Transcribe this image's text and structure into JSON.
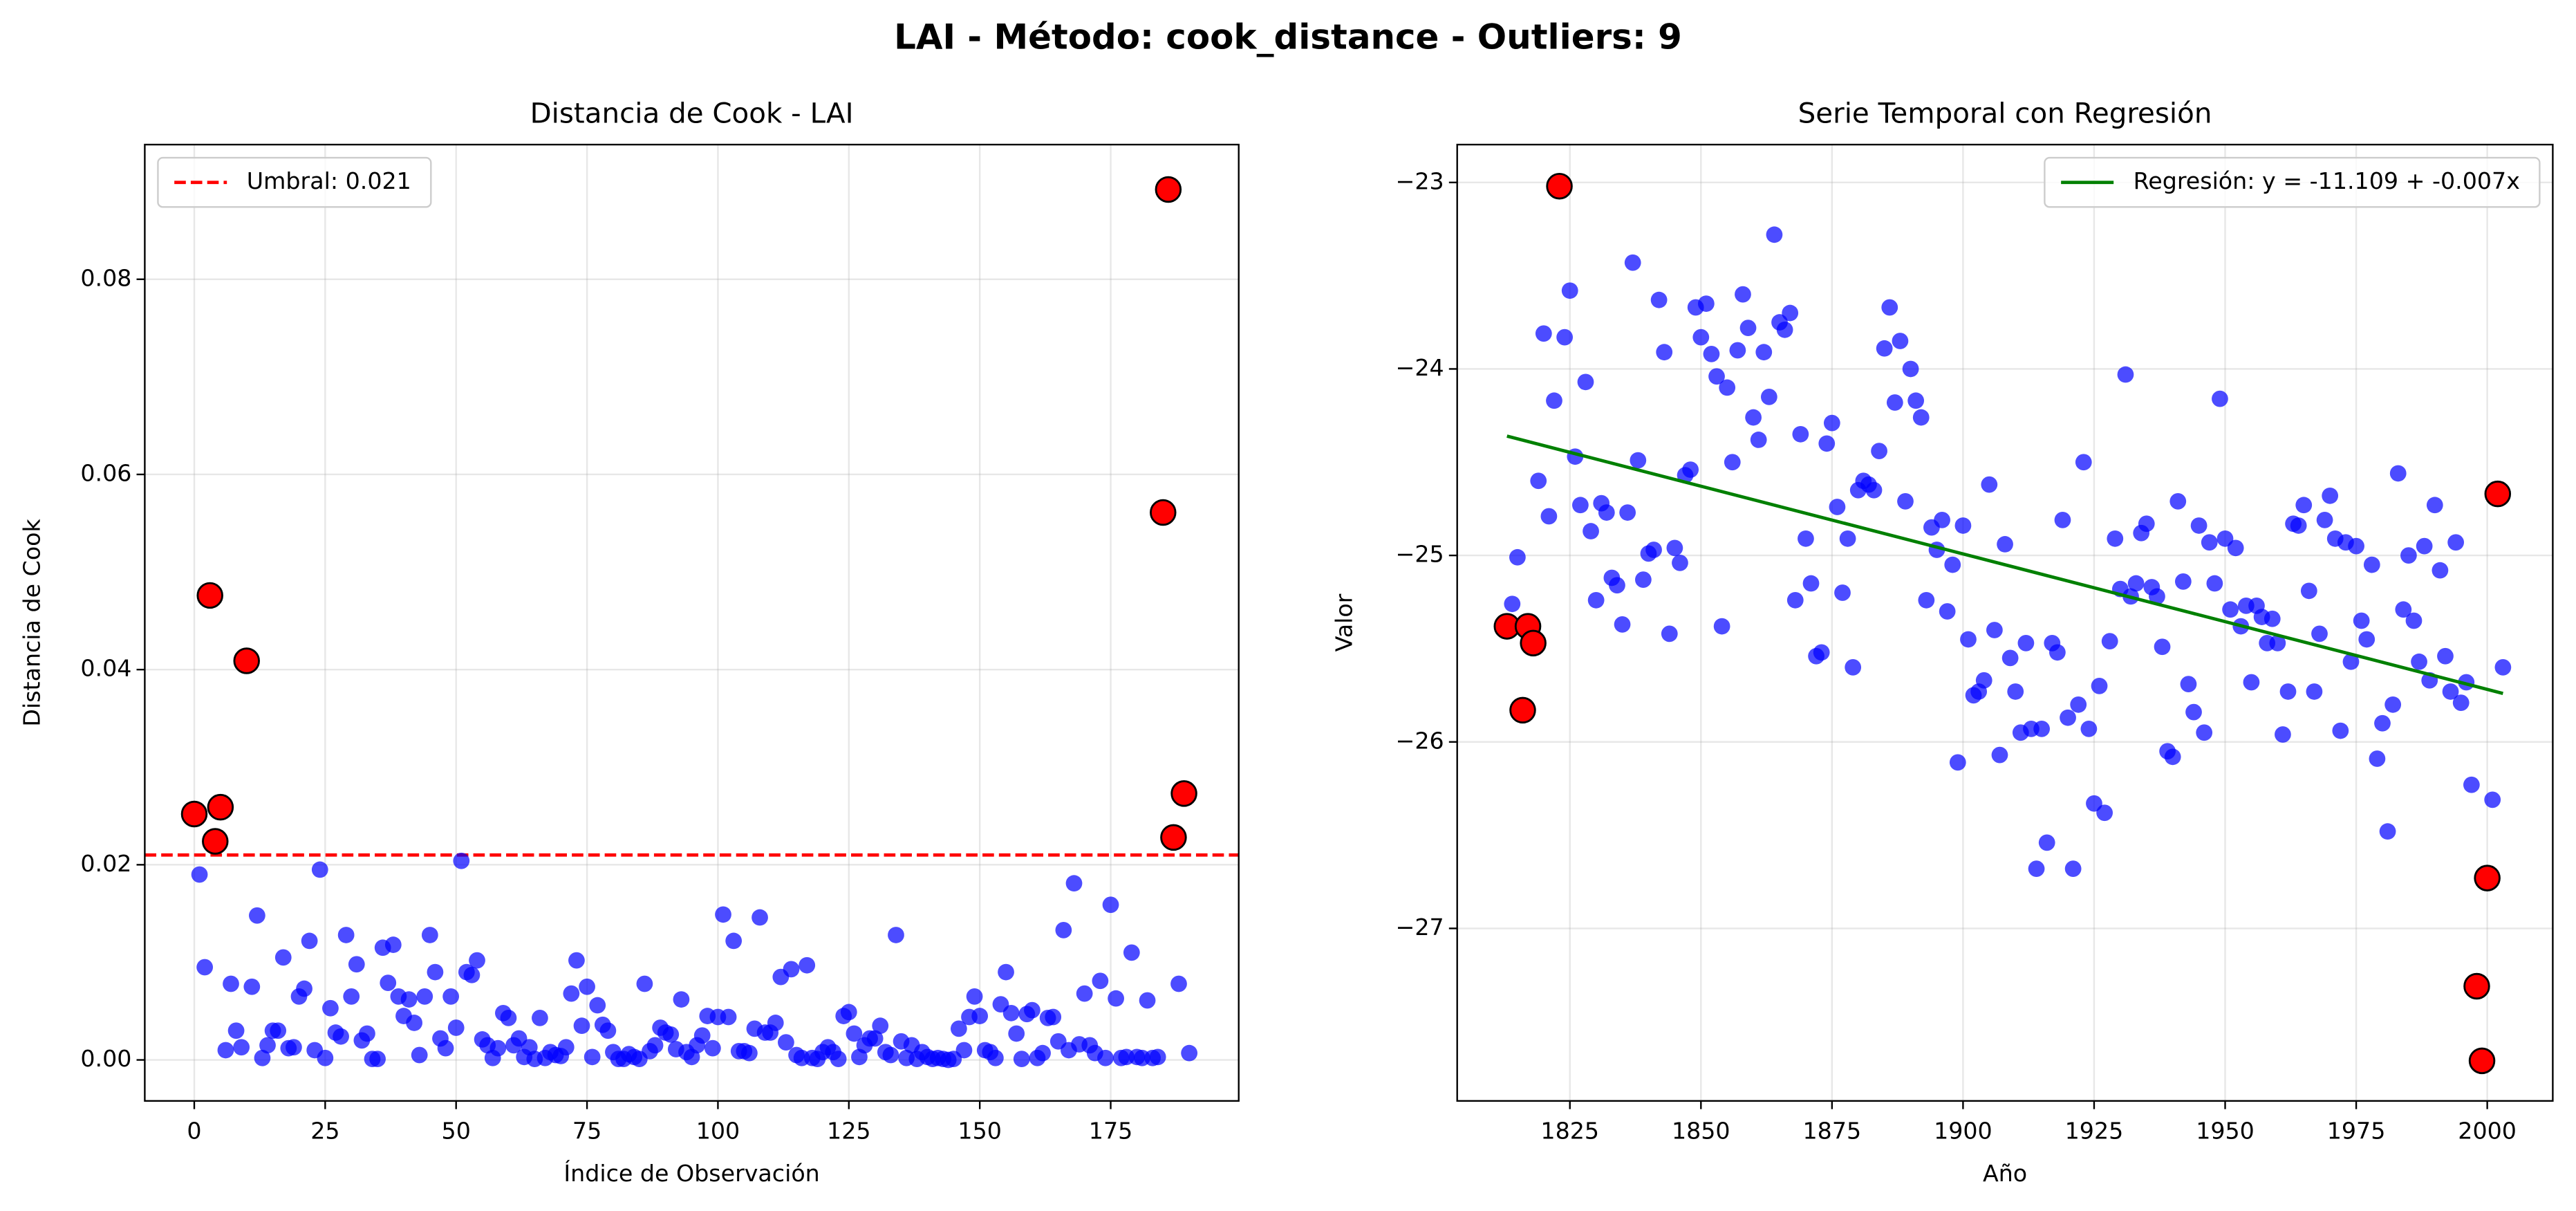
{
  "title": "LAI  - Método: cook_distance - Outliers: 9",
  "chart_data": [
    {
      "type": "scatter",
      "title": "Distancia de Cook - LAI",
      "xlabel": "Índice de Observación",
      "ylabel": "Distancia de Cook",
      "xlim": [
        -9.45,
        199.45
      ],
      "ylim": [
        -0.0042,
        0.0938
      ],
      "xticks": [
        0,
        25,
        50,
        75,
        100,
        125,
        150,
        175
      ],
      "yticks": [
        {
          "value": 0,
          "label": "0.00"
        },
        {
          "value": 0.02,
          "label": "0.02"
        },
        {
          "value": 0.04,
          "label": "0.04"
        },
        {
          "value": 0.06,
          "label": "0.06"
        },
        {
          "value": 0.08,
          "label": "0.08"
        }
      ],
      "grid": true,
      "legend": "upper left",
      "threshold": {
        "value": 0.021,
        "label": "Umbral: 0.021",
        "color": "#ff0000"
      },
      "series": [
        {
          "color": "#0000ff",
          "x": [
            1,
            2,
            6,
            7,
            8,
            9,
            11,
            12,
            13,
            14,
            15,
            16,
            17,
            18,
            19,
            20,
            21,
            22,
            23,
            24,
            25,
            26,
            27,
            28,
            29,
            30,
            31,
            32,
            33,
            34,
            35,
            36,
            37,
            38,
            39,
            40,
            41,
            42,
            43,
            44,
            45,
            46,
            47,
            48,
            49,
            50,
            51,
            52,
            53,
            54,
            55,
            56,
            57,
            58,
            59,
            60,
            61,
            62,
            63,
            64,
            65,
            66,
            67,
            68,
            69,
            70,
            71,
            72,
            73,
            74,
            75,
            76,
            77,
            78,
            79,
            80,
            81,
            82,
            83,
            84,
            85,
            86,
            87,
            88,
            89,
            90,
            91,
            92,
            93,
            94,
            95,
            96,
            97,
            98,
            99,
            100,
            101,
            102,
            103,
            104,
            105,
            106,
            107,
            108,
            109,
            110,
            111,
            112,
            113,
            114,
            115,
            116,
            117,
            118,
            119,
            120,
            121,
            122,
            123,
            124,
            125,
            126,
            127,
            128,
            129,
            130,
            131,
            132,
            133,
            134,
            135,
            136,
            137,
            138,
            139,
            140,
            141,
            142,
            143,
            144,
            145,
            146,
            147,
            148,
            149,
            150,
            151,
            152,
            153,
            154,
            155,
            156,
            157,
            158,
            159,
            160,
            161,
            162,
            163,
            164,
            165,
            166,
            167,
            168,
            169,
            170,
            171,
            172,
            173,
            174,
            175,
            176,
            177,
            178,
            179,
            180,
            181,
            182,
            183,
            184,
            188,
            190
          ],
          "values": [
            0.019,
            0.0095,
            0.001,
            0.0078,
            0.003,
            0.0013,
            0.0075,
            0.0148,
            0.0002,
            0.0015,
            0.003,
            0.003,
            0.0105,
            0.0012,
            0.0013,
            0.0065,
            0.0073,
            0.0122,
            0.001,
            0.0195,
            0.0002,
            0.0053,
            0.0028,
            0.0024,
            0.0128,
            0.0065,
            0.0098,
            0.002,
            0.0027,
            0.0001,
            0.0001,
            0.0115,
            0.0079,
            0.0118,
            0.0065,
            0.0045,
            0.0062,
            0.0038,
            0.0005,
            0.0065,
            0.0128,
            0.009,
            0.0022,
            0.0012,
            0.0065,
            0.0033,
            0.0204,
            0.009,
            0.0087,
            0.0102,
            0.0021,
            0.0015,
            0.0002,
            0.0012,
            0.0048,
            0.0043,
            0.0015,
            0.0022,
            0.0003,
            0.0013,
            0.0001,
            0.0043,
            0.0002,
            0.0008,
            0.0005,
            0.0004,
            0.0013,
            0.0068,
            0.0102,
            0.0035,
            0.0075,
            0.0003,
            0.0056,
            0.0036,
            0.003,
            0.0008,
            0.0001,
            0.0001,
            0.0006,
            0.0003,
            0.0001,
            0.0078,
            0.0009,
            0.0015,
            0.0033,
            0.0028,
            0.0026,
            0.0011,
            0.0062,
            0.0008,
            0.0003,
            0.0015,
            0.0025,
            0.0045,
            0.0012,
            0.0044,
            0.0149,
            0.0044,
            0.0122,
            0.0009,
            0.0009,
            0.0007,
            0.0032,
            0.0146,
            0.0028,
            0.0028,
            0.0038,
            0.0085,
            0.0018,
            0.0093,
            0.0005,
            0.0002,
            0.0097,
            0.0002,
            0.0001,
            0.0008,
            0.0013,
            0.0008,
            0.0001,
            0.0045,
            0.0049,
            0.0027,
            0.0003,
            0.0015,
            0.0022,
            0.0022,
            0.0035,
            0.0008,
            0.0005,
            0.0128,
            0.0019,
            0.0002,
            0.0015,
            0.0001,
            0.0008,
            0.0003,
            0.0001,
            0.0002,
            0.0001,
            0,
            0.0001,
            0.0032,
            0.001,
            0.0044,
            0.0065,
            0.0045,
            0.001,
            0.0008,
            0.0002,
            0.0057,
            0.009,
            0.0048,
            0.0027,
            0.0001,
            0.0047,
            0.0051,
            0.0002,
            0.0007,
            0.0043,
            0.0044,
            0.0019,
            0.0133,
            0.001,
            0.0181,
            0.0016,
            0.0068,
            0.0015,
            0.0007,
            0.0081,
            0.0002,
            0.0159,
            0.0063,
            0.0002,
            0.0003,
            0.011,
            0.0003,
            0.0002,
            0.0061,
            0.0002,
            0.0003,
            0.0078,
            0.0007
          ]
        },
        {
          "color": "#ff0000",
          "x": [
            0,
            3,
            4,
            5,
            10,
            185,
            186,
            187,
            189
          ],
          "values": [
            0.0252,
            0.0476,
            0.0224,
            0.0259,
            0.0409,
            0.0561,
            0.0892,
            0.0228,
            0.0273
          ]
        }
      ]
    },
    {
      "type": "scatter",
      "title": "Serie Temporal con Regresión",
      "xlabel": "Año",
      "ylabel": "Valor",
      "xlim": [
        1803.5,
        2012.5
      ],
      "ylim": [
        -27.925,
        -22.797
      ],
      "xticks": [
        1825,
        1850,
        1875,
        1900,
        1925,
        1950,
        1975,
        2000
      ],
      "yticks": [
        {
          "value": -23,
          "label": "−23"
        },
        {
          "value": -24,
          "label": "−24"
        },
        {
          "value": -25,
          "label": "−25"
        },
        {
          "value": -26,
          "label": "−26"
        },
        {
          "value": -27,
          "label": "−27"
        }
      ],
      "grid": true,
      "legend": "upper right",
      "regression": {
        "label": "Regresión: y = -11.109 + -0.007x",
        "color": "#008000",
        "x": [
          1813,
          2003
        ],
        "values": [
          -24.36,
          -25.74
        ]
      },
      "series": [
        {
          "color": "#0000ff",
          "x": [
            1814,
            1815,
            1819,
            1820,
            1821,
            1822,
            1824,
            1825,
            1826,
            1827,
            1828,
            1829,
            1830,
            1831,
            1832,
            1833,
            1834,
            1835,
            1836,
            1837,
            1838,
            1839,
            1840,
            1841,
            1842,
            1843,
            1844,
            1845,
            1846,
            1847,
            1848,
            1849,
            1850,
            1851,
            1852,
            1853,
            1854,
            1855,
            1856,
            1857,
            1858,
            1859,
            1860,
            1861,
            1862,
            1863,
            1864,
            1865,
            1866,
            1867,
            1868,
            1869,
            1870,
            1871,
            1872,
            1873,
            1874,
            1875,
            1876,
            1877,
            1878,
            1879,
            1880,
            1881,
            1882,
            1883,
            1884,
            1885,
            1886,
            1887,
            1888,
            1889,
            1890,
            1891,
            1892,
            1893,
            1894,
            1895,
            1896,
            1897,
            1898,
            1899,
            1900,
            1901,
            1902,
            1903,
            1904,
            1905,
            1906,
            1907,
            1908,
            1909,
            1910,
            1911,
            1912,
            1913,
            1914,
            1915,
            1916,
            1917,
            1918,
            1919,
            1920,
            1921,
            1922,
            1923,
            1924,
            1925,
            1926,
            1927,
            1928,
            1929,
            1930,
            1931,
            1932,
            1933,
            1934,
            1935,
            1936,
            1937,
            1938,
            1939,
            1940,
            1941,
            1942,
            1943,
            1944,
            1945,
            1946,
            1947,
            1948,
            1949,
            1950,
            1951,
            1952,
            1953,
            1954,
            1955,
            1956,
            1957,
            1958,
            1959,
            1960,
            1961,
            1962,
            1963,
            1964,
            1965,
            1966,
            1967,
            1968,
            1969,
            1970,
            1971,
            1972,
            1973,
            1974,
            1975,
            1976,
            1977,
            1978,
            1979,
            1980,
            1981,
            1982,
            1983,
            1984,
            1985,
            1986,
            1987,
            1988,
            1989,
            1990,
            1991,
            1992,
            1993,
            1994,
            1995,
            1996,
            1997,
            2001,
            2003
          ],
          "values": [
            -25.26,
            -25.01,
            -24.6,
            -23.81,
            -24.79,
            -24.17,
            -23.83,
            -23.58,
            -24.47,
            -24.73,
            -24.07,
            -24.87,
            -25.24,
            -24.72,
            -24.77,
            -25.12,
            -25.16,
            -25.37,
            -24.77,
            -23.43,
            -24.49,
            -25.13,
            -24.99,
            -24.97,
            -23.63,
            -23.91,
            -25.42,
            -24.96,
            -25.04,
            -24.57,
            -24.54,
            -23.67,
            -23.83,
            -23.65,
            -23.92,
            -24.04,
            -25.38,
            -24.1,
            -24.5,
            -23.9,
            -23.6,
            -23.78,
            -24.26,
            -24.38,
            -23.91,
            -24.15,
            -23.28,
            -23.75,
            -23.79,
            -23.7,
            -25.24,
            -24.35,
            -24.91,
            -25.15,
            -25.54,
            -25.52,
            -24.4,
            -24.29,
            -24.74,
            -25.2,
            -24.91,
            -25.6,
            -24.65,
            -24.6,
            -24.62,
            -24.65,
            -24.44,
            -23.89,
            -23.67,
            -24.18,
            -23.85,
            -24.71,
            -24,
            -24.17,
            -24.26,
            -25.24,
            -24.85,
            -24.97,
            -24.81,
            -25.3,
            -25.05,
            -26.11,
            -24.84,
            -25.45,
            -25.75,
            -25.73,
            -25.67,
            -24.62,
            -25.4,
            -26.07,
            -24.94,
            -25.55,
            -25.73,
            -25.95,
            -25.47,
            -25.93,
            -26.68,
            -25.93,
            -26.54,
            -25.47,
            -25.52,
            -24.81,
            -25.87,
            -26.68,
            -25.8,
            -24.5,
            -25.93,
            -26.33,
            -25.7,
            -26.38,
            -25.46,
            -24.91,
            -25.18,
            -24.03,
            -25.22,
            -25.15,
            -24.88,
            -24.83,
            -25.17,
            -25.22,
            -25.49,
            -26.05,
            -26.08,
            -24.71,
            -25.14,
            -25.69,
            -25.84,
            -24.84,
            -25.95,
            -24.93,
            -25.15,
            -24.16,
            -24.91,
            -25.29,
            -24.96,
            -25.38,
            -25.27,
            -25.68,
            -25.27,
            -25.33,
            -25.47,
            -25.34,
            -25.47,
            -25.96,
            -25.73,
            -24.83,
            -24.84,
            -24.73,
            -25.19,
            -25.73,
            -25.42,
            -24.81,
            -24.68,
            -24.91,
            -25.94,
            -24.93,
            -25.57,
            -24.95,
            -25.35,
            -25.45,
            -25.05,
            -26.09,
            -25.9,
            -26.48,
            -25.8,
            -24.56,
            -25.29,
            -25,
            -25.35,
            -25.57,
            -24.95,
            -25.67,
            -24.73,
            -25.08,
            -25.54,
            -25.73,
            -24.93,
            -25.79,
            -25.68,
            -26.23,
            -26.31,
            -25.6
          ]
        },
        {
          "color": "#ff0000",
          "x": [
            1813,
            1816,
            1817,
            1818,
            1823,
            1998,
            1999,
            2000,
            2002
          ],
          "values": [
            -25.38,
            -25.83,
            -25.38,
            -25.47,
            -23.02,
            -27.31,
            -27.71,
            -26.73,
            -24.67
          ]
        }
      ]
    }
  ]
}
